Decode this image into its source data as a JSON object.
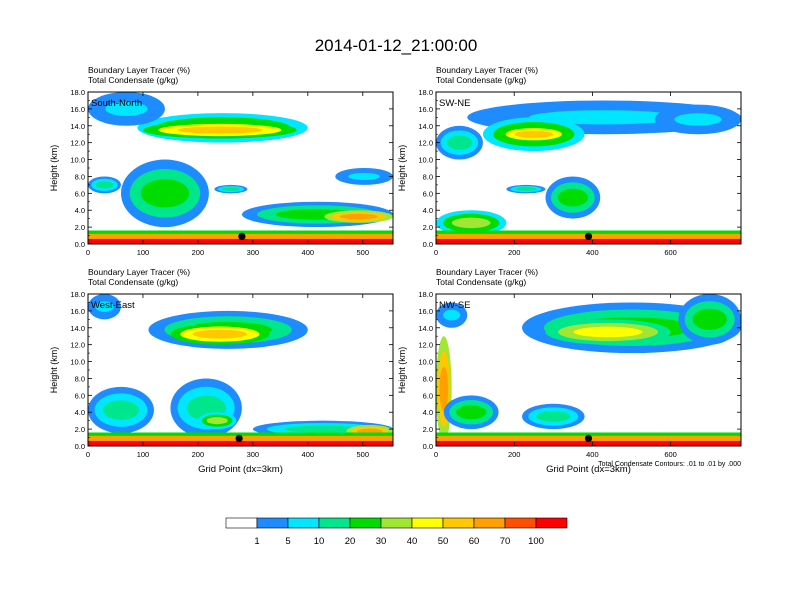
{
  "title": "2014-01-12_21:00:00",
  "colors": {
    "scale": [
      "#ffffff",
      "#1e8cff",
      "#00e6ff",
      "#00e68c",
      "#00dc00",
      "#a0e632",
      "#ffff00",
      "#ffc800",
      "#ffa000",
      "#ff5000",
      "#ff0000"
    ],
    "contour": "#000000",
    "marker": "#000000"
  },
  "chart_data": [
    {
      "type": "heatmap",
      "panel_label": "South-North",
      "subtitle_left": "Boundary Layer Tracer",
      "subtitle_unit": "(%)",
      "subtitle2_left": "Total Condensate",
      "subtitle2_unit": "(g/kg)",
      "ylabel": "Height (km)",
      "xlabel": "",
      "xlim": [
        0,
        555
      ],
      "ylim": [
        0,
        18
      ],
      "xticks": [
        "0",
        "100",
        "200",
        "300",
        "400",
        "500"
      ],
      "yticks": [
        "0.0",
        "2.0",
        "4.0",
        "6.0",
        "8.0",
        "10.0",
        "12.0",
        "14.0",
        "16.0",
        "18.0"
      ],
      "marker_x": 280,
      "blobs": [
        {
          "x": [
            90,
            400
          ],
          "y": [
            12,
            15.5
          ],
          "level": 5
        },
        {
          "x": [
            100,
            380
          ],
          "y": [
            12.5,
            14.5
          ],
          "level": 7
        },
        {
          "x": [
            0,
            140
          ],
          "y": [
            14,
            18
          ],
          "level": 2
        },
        {
          "x": [
            0,
            60
          ],
          "y": [
            6,
            8
          ],
          "level": 3
        },
        {
          "x": [
            60,
            220
          ],
          "y": [
            2,
            10
          ],
          "level": 4
        },
        {
          "x": [
            280,
            555
          ],
          "y": [
            2,
            5
          ],
          "level": 4
        },
        {
          "x": [
            430,
            555
          ],
          "y": [
            2.5,
            4
          ],
          "level": 8
        },
        {
          "x": [
            230,
            290
          ],
          "y": [
            6,
            7
          ],
          "level": 3
        },
        {
          "x": [
            450,
            555
          ],
          "y": [
            7,
            9
          ],
          "level": 2
        }
      ]
    },
    {
      "type": "heatmap",
      "panel_label": "SW-NE",
      "subtitle_left": "Boundary Layer Tracer",
      "subtitle_unit": "(%)",
      "subtitle2_left": "Total Condensate",
      "subtitle2_unit": "(g/kg)",
      "ylabel": "Height (km)",
      "xlabel": "",
      "xlim": [
        0,
        780
      ],
      "ylim": [
        0,
        18
      ],
      "xticks": [
        "0",
        "200",
        "400",
        "600"
      ],
      "yticks": [
        "0.0",
        "2.0",
        "4.0",
        "6.0",
        "8.0",
        "10.0",
        "12.0",
        "14.0",
        "16.0",
        "18.0"
      ],
      "marker_x": 390,
      "blobs": [
        {
          "x": [
            80,
            780
          ],
          "y": [
            13,
            17
          ],
          "level": 2
        },
        {
          "x": [
            120,
            380
          ],
          "y": [
            11,
            15
          ],
          "level": 5
        },
        {
          "x": [
            160,
            340
          ],
          "y": [
            12,
            14
          ],
          "level": 7
        },
        {
          "x": [
            0,
            120
          ],
          "y": [
            10,
            14
          ],
          "level": 3
        },
        {
          "x": [
            280,
            420
          ],
          "y": [
            3,
            8
          ],
          "level": 4
        },
        {
          "x": [
            0,
            180
          ],
          "y": [
            1,
            4
          ],
          "level": 5
        },
        {
          "x": [
            560,
            780
          ],
          "y": [
            13,
            16.5
          ],
          "level": 2
        },
        {
          "x": [
            180,
            280
          ],
          "y": [
            6,
            7
          ],
          "level": 3
        }
      ]
    },
    {
      "type": "heatmap",
      "panel_label": "West-East",
      "subtitle_left": "Boundary Layer Tracer",
      "subtitle_unit": "(%)",
      "subtitle2_left": "Total Condensate",
      "subtitle2_unit": "(g/kg)",
      "ylabel": "Height (km)",
      "xlabel": "Grid Point (dx=3km)",
      "xlim": [
        0,
        555
      ],
      "ylim": [
        0,
        18
      ],
      "xticks": [
        "0",
        "100",
        "200",
        "300",
        "400",
        "500"
      ],
      "yticks": [
        "0.0",
        "2.0",
        "4.0",
        "6.0",
        "8.0",
        "10.0",
        "12.0",
        "14.0",
        "16.0",
        "18.0"
      ],
      "marker_x": 275,
      "blobs": [
        {
          "x": [
            110,
            400
          ],
          "y": [
            11.5,
            16
          ],
          "level": 4
        },
        {
          "x": [
            150,
            330
          ],
          "y": [
            12,
            14.5
          ],
          "level": 7
        },
        {
          "x": [
            0,
            120
          ],
          "y": [
            1.5,
            7
          ],
          "level": 3
        },
        {
          "x": [
            150,
            280
          ],
          "y": [
            1,
            8
          ],
          "level": 3
        },
        {
          "x": [
            200,
            270
          ],
          "y": [
            2,
            4
          ],
          "level": 5
        },
        {
          "x": [
            300,
            555
          ],
          "y": [
            1,
            3
          ],
          "level": 3
        },
        {
          "x": [
            470,
            555
          ],
          "y": [
            1,
            2.5
          ],
          "level": 8
        },
        {
          "x": [
            0,
            60
          ],
          "y": [
            15,
            18
          ],
          "level": 2
        }
      ]
    },
    {
      "type": "heatmap",
      "panel_label": "NW-SE",
      "subtitle_left": "Boundary Layer Tracer",
      "subtitle_unit": "(%)",
      "subtitle2_left": "Total Condensate",
      "subtitle2_unit": "(g/kg)",
      "ylabel": "Height (km)",
      "xlabel": "Grid Point (dx=3km)",
      "contour_note": "Total Condensate Contours: .01 to .01 by .000",
      "xlim": [
        0,
        780
      ],
      "ylim": [
        0,
        18
      ],
      "xticks": [
        "0",
        "200",
        "400",
        "600"
      ],
      "yticks": [
        "0.0",
        "2.0",
        "4.0",
        "6.0",
        "8.0",
        "10.0",
        "12.0",
        "14.0",
        "16.0",
        "18.0"
      ],
      "marker_x": 390,
      "blobs": [
        {
          "x": [
            220,
            780
          ],
          "y": [
            11,
            17
          ],
          "level": 4
        },
        {
          "x": [
            280,
            600
          ],
          "y": [
            12,
            15
          ],
          "level": 6
        },
        {
          "x": [
            0,
            40
          ],
          "y": [
            0.5,
            13
          ],
          "level": 8
        },
        {
          "x": [
            20,
            160
          ],
          "y": [
            2,
            6
          ],
          "level": 4
        },
        {
          "x": [
            220,
            380
          ],
          "y": [
            2,
            5
          ],
          "level": 3
        },
        {
          "x": [
            0,
            80
          ],
          "y": [
            14,
            17
          ],
          "level": 2
        },
        {
          "x": [
            620,
            780
          ],
          "y": [
            12,
            18
          ],
          "level": 4
        }
      ]
    }
  ],
  "legend": {
    "labels": [
      "1",
      "5",
      "10",
      "20",
      "30",
      "40",
      "50",
      "60",
      "70",
      "100"
    ]
  }
}
